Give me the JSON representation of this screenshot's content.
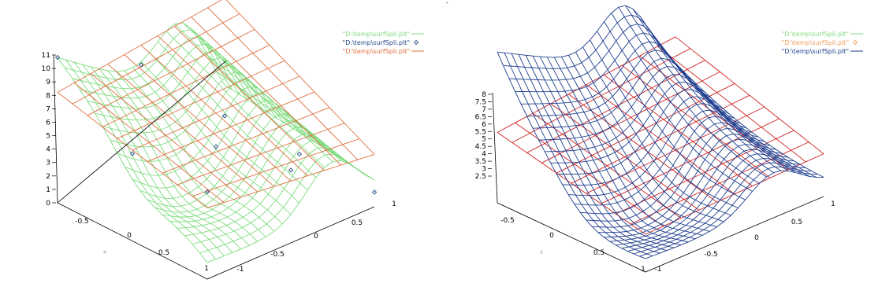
{
  "top_mark": "-",
  "chart_data": [
    {
      "type": "surface",
      "xlabel": "x",
      "xticks": [
        "-0.5",
        "0",
        "0.5",
        "1"
      ],
      "yticks": [
        "-1",
        "-0.5",
        "0",
        "0.5",
        "1"
      ],
      "zticks": [
        "0",
        "1",
        "2",
        "3",
        "4",
        "5",
        "6",
        "7",
        "8",
        "9",
        "10",
        "11"
      ],
      "zlim": [
        0,
        11
      ],
      "xlim": [
        -1,
        1
      ],
      "ylim": [
        -1,
        1
      ],
      "legend_position": "top-right",
      "series": [
        {
          "name": "\"D:\\temp\\surfSpli.plt\"",
          "style": "lines",
          "color": "#7fdc7f",
          "grid": [
            20,
            20
          ]
        },
        {
          "name": "\"D:\\temp\\surfSpli.plt\"",
          "style": "points",
          "color": "#2a4a8a",
          "points": [
            [
              -1,
              -1,
              10
            ],
            [
              -1,
              0,
              7
            ],
            [
              -1,
              1,
              1
            ],
            [
              0,
              -1,
              6
            ],
            [
              0,
              0,
              4
            ],
            [
              0,
              1,
              1
            ],
            [
              1,
              -1,
              6
            ],
            [
              1,
              0,
              5
            ],
            [
              1,
              1,
              1
            ]
          ]
        },
        {
          "name": "\"D:\\temp\\surfSpli.plt\"",
          "style": "lines",
          "color": "#e07040",
          "grid": [
            10,
            10
          ]
        }
      ]
    },
    {
      "type": "surface",
      "xlabel": "x",
      "xticks": [
        "-0.5",
        "0",
        "0.5",
        "1"
      ],
      "yticks": [
        "-1",
        "-0.5",
        "0",
        "0.5",
        "1"
      ],
      "zticks": [
        "2.5",
        "3",
        "3.5",
        "4",
        "4.5",
        "5",
        "5.5",
        "6",
        "6.5",
        "7",
        "7.5",
        "8"
      ],
      "zlim": [
        0,
        11
      ],
      "xlim": [
        -1,
        1
      ],
      "ylim": [
        -1,
        1
      ],
      "legend_position": "top-right",
      "series": [
        {
          "name": "\"D:\\temp\\surfSpli.plt\"",
          "style": "lines",
          "color": "#7fdc7f",
          "grid": [
            0,
            0
          ]
        },
        {
          "name": "\"D:\\temp\\surfSpli.plt\"",
          "style": "points",
          "color": "#f0a060",
          "points": []
        },
        {
          "name": "\"D:\\temp\\surfSpli.plt\"",
          "style": "lines",
          "color": "#1f3f8f",
          "grid": [
            25,
            25
          ]
        }
      ],
      "extra_series_color": "#d02020"
    }
  ]
}
